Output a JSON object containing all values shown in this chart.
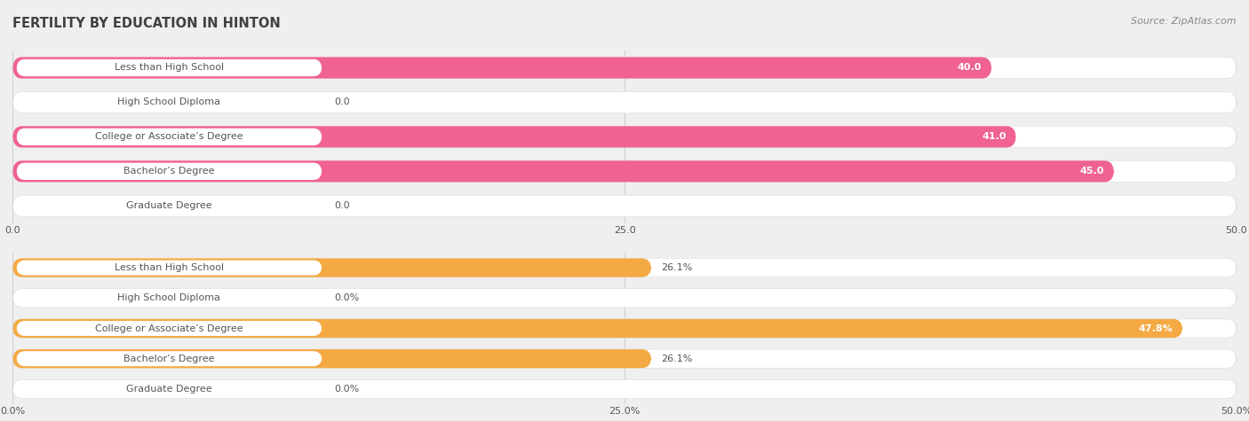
{
  "title": "FERTILITY BY EDUCATION IN HINTON",
  "source": "Source: ZipAtlas.com",
  "top_chart": {
    "categories": [
      "Less than High School",
      "High School Diploma",
      "College or Associate’s Degree",
      "Bachelor’s Degree",
      "Graduate Degree"
    ],
    "values": [
      40.0,
      0.0,
      41.0,
      45.0,
      0.0
    ],
    "bar_color": "#F06292",
    "bar_low_color": "#F8BBD0",
    "xlim": [
      0,
      50
    ],
    "xticks": [
      0.0,
      25.0,
      50.0
    ],
    "xtick_labels": [
      "0.0",
      "25.0",
      "50.0"
    ],
    "value_labels": [
      "40.0",
      "0.0",
      "41.0",
      "45.0",
      "0.0"
    ],
    "threshold_inside": 30
  },
  "bottom_chart": {
    "categories": [
      "Less than High School",
      "High School Diploma",
      "College or Associate’s Degree",
      "Bachelor’s Degree",
      "Graduate Degree"
    ],
    "values": [
      26.1,
      0.0,
      47.8,
      26.1,
      0.0
    ],
    "bar_color": "#F4A942",
    "bar_low_color": "#FADDAA",
    "xlim": [
      0,
      50
    ],
    "xticks": [
      0.0,
      25.0,
      50.0
    ],
    "xtick_labels": [
      "0.0%",
      "25.0%",
      "50.0%"
    ],
    "value_labels": [
      "26.1%",
      "0.0%",
      "47.8%",
      "26.1%",
      "0.0%"
    ],
    "threshold_inside": 35
  },
  "bg_color": "#efefef",
  "bar_bg_color": "#ffffff",
  "label_text_color": "#555555",
  "value_text_dark": "#555555",
  "value_text_light": "#ffffff",
  "label_fontsize": 8.0,
  "value_fontsize": 8.0,
  "title_fontsize": 10.5,
  "source_fontsize": 8.0,
  "grid_color": "#d0d0d0",
  "title_color": "#404040",
  "source_color": "#888888"
}
